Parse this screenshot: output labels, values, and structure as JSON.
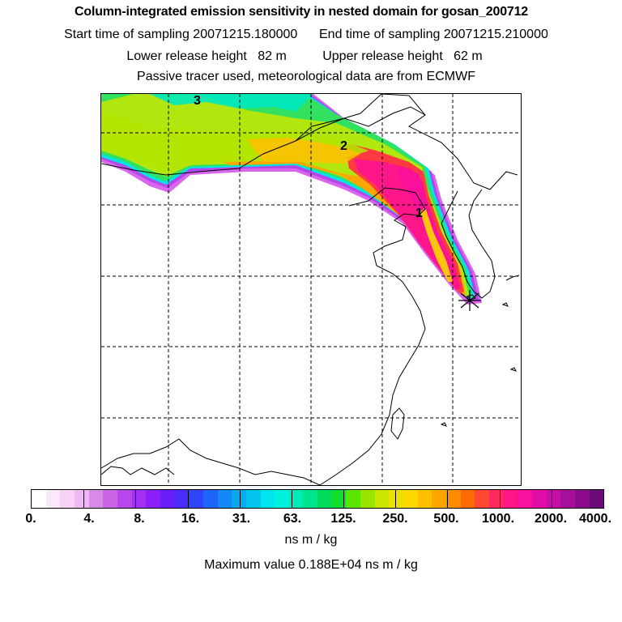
{
  "header": {
    "title": "Column-integrated emission sensitivity in nested domain for gosan_200712",
    "sampling_line": "Start time of sampling 20071215.180000      End time of sampling 20071215.210000",
    "release_line": "Lower release height   82 m          Upper release height   62 m",
    "tracer_line": "Passive tracer used, meteorological data are from ECMWF"
  },
  "map": {
    "trajectory_labels": [
      "1",
      "2",
      "3"
    ],
    "receptor_symbol": "*"
  },
  "colorbar": {
    "tick_labels": [
      "0.",
      "4.",
      "8.",
      "16.",
      "31.",
      "63.",
      "125.",
      "250.",
      "500.",
      "1000.",
      "2000.",
      "4000."
    ],
    "colors": [
      "#ffffff",
      "#fbe9fb",
      "#f6d2f6",
      "#eeb8f2",
      "#d88ae8",
      "#c964e6",
      "#b747ec",
      "#a430f4",
      "#8a20f6",
      "#6a1df8",
      "#4a2cfb",
      "#2f45fb",
      "#1e66f8",
      "#1488f4",
      "#0aa8ee",
      "#02c4ec",
      "#00e4ec",
      "#00f2dc",
      "#00ebb8",
      "#00e48c",
      "#00dc5a",
      "#10e02c",
      "#5ae600",
      "#9be400",
      "#c8e600",
      "#ece000",
      "#ffd800",
      "#ffc000",
      "#ffa600",
      "#ff8a00",
      "#ff6a00",
      "#ff4830",
      "#ff2860",
      "#ff1686",
      "#f8109e",
      "#e00ea8",
      "#c60ea8",
      "#a80e9c",
      "#8a0c8c",
      "#6c0a78"
    ],
    "units": "ns m / kg",
    "max_value_line": "Maximum value  0.188E+04 ns m / kg"
  }
}
